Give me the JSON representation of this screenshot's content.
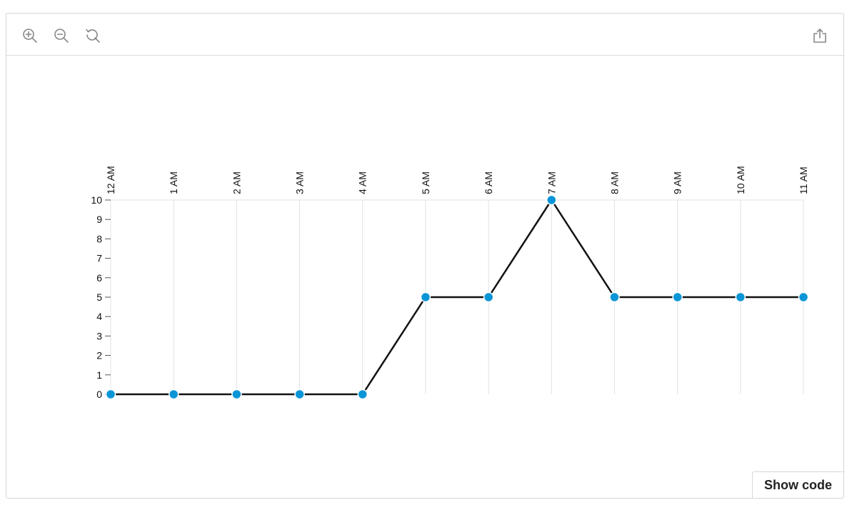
{
  "toolbar": {
    "zoom_in_icon": "zoom-in-icon",
    "zoom_out_icon": "zoom-out-icon",
    "reset_icon": "reset-zoom-icon",
    "share_icon": "share-icon"
  },
  "show_code_label": "Show code",
  "chart_data": {
    "type": "line",
    "categories": [
      "12 AM",
      "1 AM",
      "2 AM",
      "3 AM",
      "4 AM",
      "5 AM",
      "6 AM",
      "7 AM",
      "8 AM",
      "9 AM",
      "10 AM",
      "11 AM"
    ],
    "series": [
      {
        "values": [
          0,
          0,
          0,
          0,
          0,
          5,
          5,
          10,
          5,
          5,
          5,
          5
        ]
      }
    ],
    "ylim": [
      0,
      10
    ],
    "yticks": [
      0,
      1,
      2,
      3,
      4,
      5,
      6,
      7,
      8,
      9,
      10
    ],
    "x_axis_position": "top",
    "grid": "vertical",
    "line_color": "#111111",
    "marker_color": "#0a96d6",
    "grid_color": "#e2e2e2"
  }
}
